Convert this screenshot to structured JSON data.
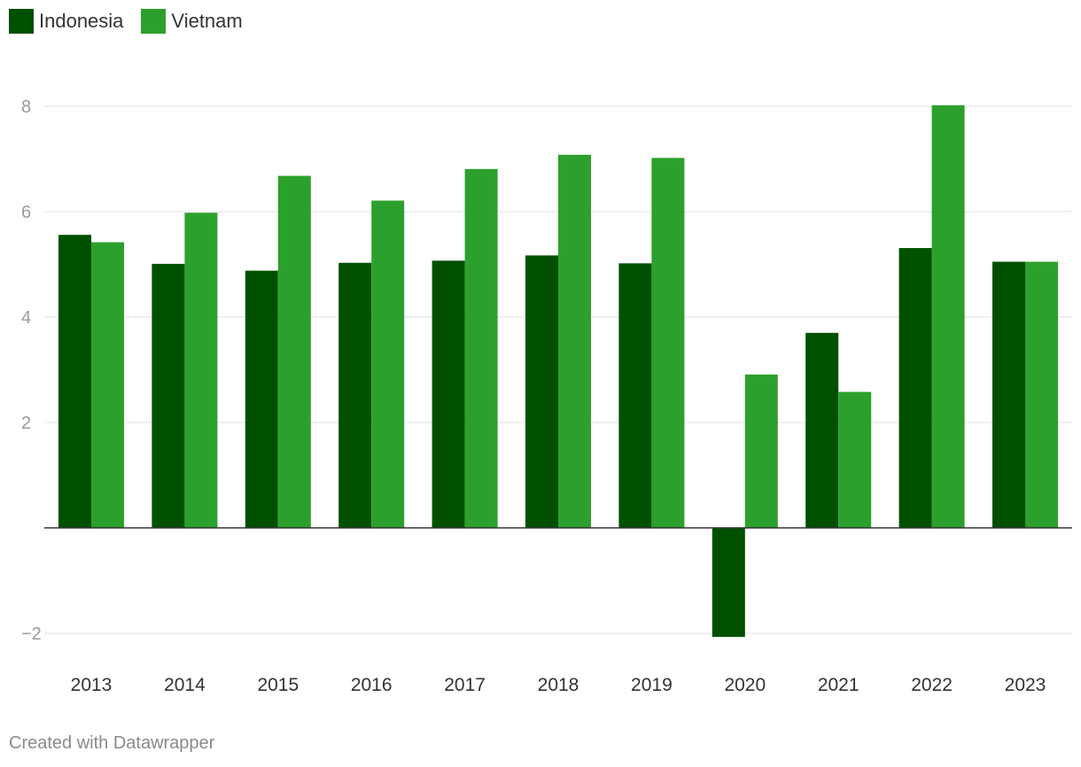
{
  "legend": [
    {
      "name": "Indonesia",
      "color": "#005000"
    },
    {
      "name": "Vietnam",
      "color": "#2ca02c"
    }
  ],
  "footer": {
    "credit": "Created with Datawrapper"
  },
  "chart_data": {
    "type": "bar",
    "title": "",
    "xlabel": "",
    "ylabel": "",
    "categories": [
      "2013",
      "2014",
      "2015",
      "2016",
      "2017",
      "2018",
      "2019",
      "2020",
      "2021",
      "2022",
      "2023"
    ],
    "series": [
      {
        "name": "Indonesia",
        "color": "#005000",
        "values": [
          5.56,
          5.01,
          4.88,
          5.03,
          5.07,
          5.17,
          5.02,
          -2.07,
          3.7,
          5.31,
          5.05
        ]
      },
      {
        "name": "Vietnam",
        "color": "#2ca02c",
        "values": [
          5.42,
          5.98,
          6.68,
          6.21,
          6.81,
          7.08,
          7.02,
          2.91,
          2.58,
          8.02,
          5.05
        ]
      }
    ],
    "ylim": [
      -2,
      8
    ],
    "yticks": [
      -2,
      2,
      4,
      6,
      8
    ],
    "ytick_labels": [
      "−2",
      "2",
      "4",
      "6",
      "8"
    ],
    "grid": true,
    "legend_position": "top-left"
  }
}
